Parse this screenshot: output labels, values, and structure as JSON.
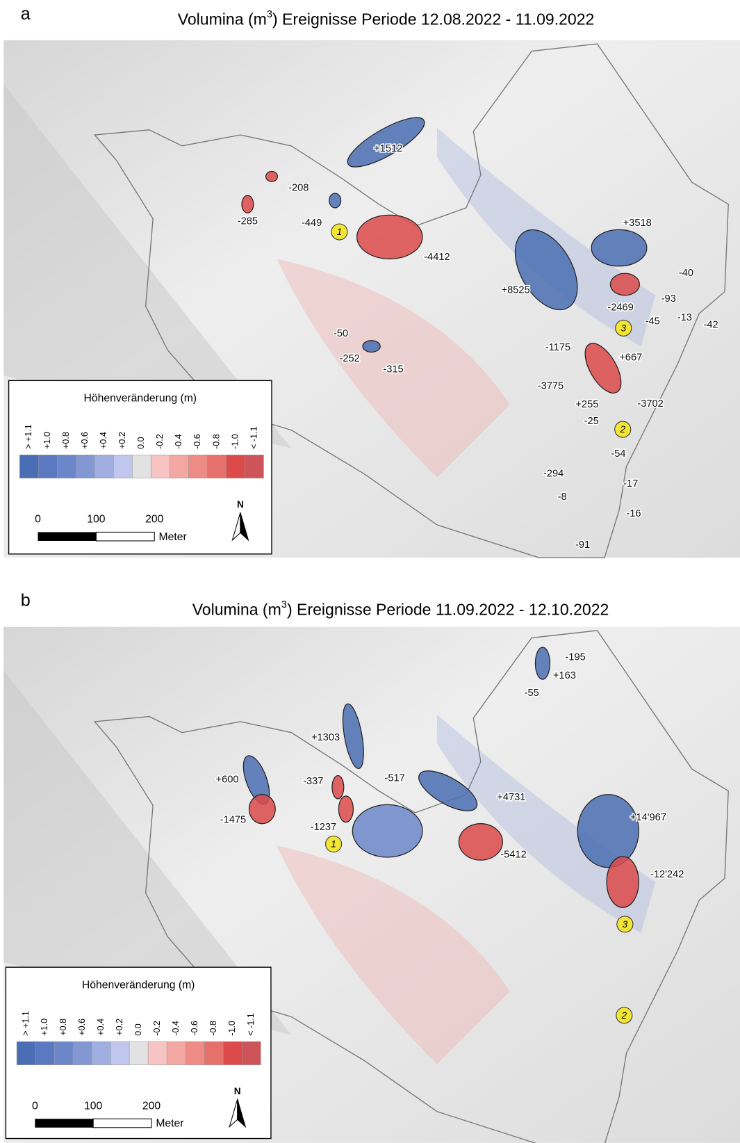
{
  "panels": [
    {
      "letter": "a",
      "title_before": "Volumina (m",
      "title_sup": "3",
      "title_after": ") Ereignisse Periode 12.08.2022 - 11.09.2022",
      "labels": [
        "+1512",
        "-208",
        "-285",
        "-449",
        "-4412",
        "+3518",
        "-40",
        "+8525",
        "-93",
        "-2469",
        "-45",
        "-13",
        "-42",
        "-50",
        "-1175",
        "+667",
        "-252",
        "-315",
        "-3775",
        "+255",
        "-3702",
        "-25",
        "-54",
        "-294",
        "-17",
        "-8",
        "-16",
        "-91"
      ],
      "markers": [
        "1",
        "3",
        "2"
      ]
    },
    {
      "letter": "b",
      "title_before": "Volumina (m",
      "title_sup": "3",
      "title_after": ") Ereignisse Periode 11.09.2022 - 12.10.2022",
      "labels": [
        "-195",
        "+163",
        "-55",
        "+1303",
        "+600",
        "-337",
        "-517",
        "+4731",
        "-1475",
        "+14'967",
        "-1237",
        "-5412",
        "-12'242"
      ],
      "markers": [
        "1",
        "3",
        "2"
      ]
    }
  ],
  "legend": {
    "title": "Höhenveränderung (m)",
    "classes": [
      "> +1.1",
      "+1.0",
      "+0.8",
      "+0.6",
      "+0.4",
      "+0.2",
      "0.0",
      "-0.2",
      "-0.4",
      "-0.6",
      "-0.8",
      "-1.0",
      "< -1.1"
    ],
    "colors": [
      "#4a6eb3",
      "#5a79c0",
      "#6c87c9",
      "#8397d3",
      "#a0afdf",
      "#c0c6ee",
      "#e2e2e2",
      "#f7c3c3",
      "#f2a7a2",
      "#ec8c85",
      "#e6716b",
      "#dc4a4a",
      "#cd555a"
    ],
    "scale": [
      "0",
      "100",
      "200"
    ],
    "unit": "Meter",
    "north": "N"
  }
}
